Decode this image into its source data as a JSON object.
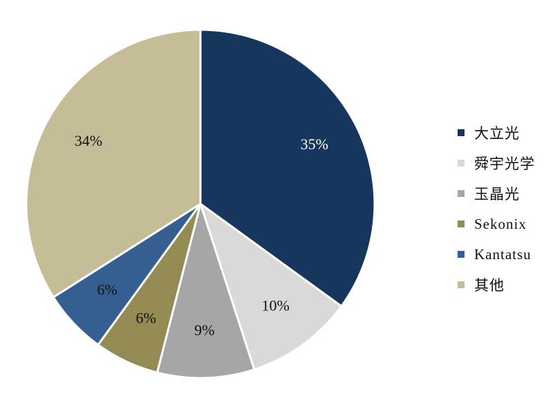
{
  "chart_data": {
    "type": "pie",
    "title": "",
    "slices": [
      {
        "label": "大立光",
        "value": 35,
        "value_label": "35%",
        "color": "#17365d",
        "label_color": "#ffffff"
      },
      {
        "label": "舜宇光学",
        "value": 10,
        "value_label": "10%",
        "color": "#d9d9d9",
        "label_color": "#111111"
      },
      {
        "label": "玉晶光",
        "value": 9,
        "value_label": "9%",
        "color": "#a6a6a6",
        "label_color": "#111111"
      },
      {
        "label": "Sekonix",
        "value": 6,
        "value_label": "6%",
        "color": "#948a54",
        "label_color": "#111111"
      },
      {
        "label": "Kantatsu",
        "value": 6,
        "value_label": "6%",
        "color": "#365f91",
        "label_color": "#111111"
      },
      {
        "label": "其他",
        "value": 34,
        "value_label": "34%",
        "color": "#c4bd97",
        "label_color": "#111111"
      }
    ],
    "start_angle": "12 o'clock",
    "direction": "clockwise",
    "legend_position": "right"
  }
}
